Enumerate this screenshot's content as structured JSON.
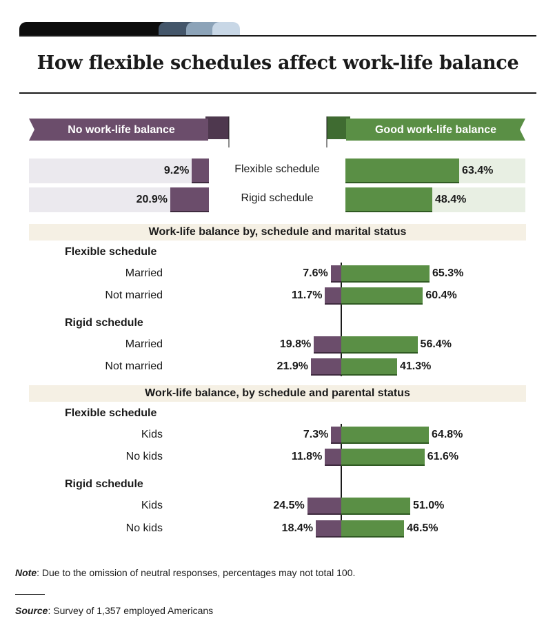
{
  "title": "How flexible schedules affect work-life balance",
  "colors": {
    "negative": "#6b4d6b",
    "positive": "#5a8f45",
    "neg_bg": "#ebe9ee",
    "pos_bg": "#e8efe3",
    "header_bg": "#f5f0e4",
    "tabs": [
      "#0d0d0d",
      "#44566a",
      "#8ca3b8",
      "#c8d7e6"
    ]
  },
  "legend": {
    "negative": "No work-life balance",
    "positive": "Good work-life balance"
  },
  "chart_data": [
    {
      "type": "bar",
      "orientation": "diverging-horizontal",
      "categories": [
        "Flexible schedule",
        "Rigid schedule"
      ],
      "series": [
        {
          "name": "No work-life balance",
          "values": [
            9.2,
            20.9
          ],
          "labels": [
            "9.2%",
            "20.9%"
          ]
        },
        {
          "name": "Good work-life balance",
          "values": [
            63.4,
            48.4
          ],
          "labels": [
            "63.4%",
            "48.4%"
          ]
        }
      ]
    },
    {
      "type": "bar",
      "orientation": "diverging-horizontal",
      "title": "Work-life balance by, schedule and marital status",
      "groups": [
        {
          "name": "Flexible schedule",
          "rows": [
            {
              "label": "Married",
              "negative": 7.6,
              "negative_label": "7.6%",
              "positive": 65.3,
              "positive_label": "65.3%"
            },
            {
              "label": "Not married",
              "negative": 11.7,
              "negative_label": "11.7%",
              "positive": 60.4,
              "positive_label": "60.4%"
            }
          ]
        },
        {
          "name": "Rigid schedule",
          "rows": [
            {
              "label": "Married",
              "negative": 19.8,
              "negative_label": "19.8%",
              "positive": 56.4,
              "positive_label": "56.4%"
            },
            {
              "label": "Not married",
              "negative": 21.9,
              "negative_label": "21.9%",
              "positive": 41.3,
              "positive_label": "41.3%"
            }
          ]
        }
      ]
    },
    {
      "type": "bar",
      "orientation": "diverging-horizontal",
      "title": "Work-life balance, by schedule and parental status",
      "groups": [
        {
          "name": "Flexible schedule",
          "rows": [
            {
              "label": "Kids",
              "negative": 7.3,
              "negative_label": "7.3%",
              "positive": 64.8,
              "positive_label": "64.8%"
            },
            {
              "label": "No kids",
              "negative": 11.8,
              "negative_label": "11.8%",
              "positive": 61.6,
              "positive_label": "61.6%"
            }
          ]
        },
        {
          "name": "Rigid schedule",
          "rows": [
            {
              "label": "Kids",
              "negative": 24.5,
              "negative_label": "24.5%",
              "positive": 51.0,
              "positive_label": "51.0%"
            },
            {
              "label": "No kids",
              "negative": 18.4,
              "negative_label": "18.4%",
              "positive": 46.5,
              "positive_label": "46.5%"
            }
          ]
        }
      ]
    }
  ],
  "note": {
    "label": "Note",
    "text": ": Due to the omission of neutral responses, percentages may not total 100."
  },
  "source": {
    "label": "Source",
    "text": ": Survey of 1,357 employed Americans"
  }
}
